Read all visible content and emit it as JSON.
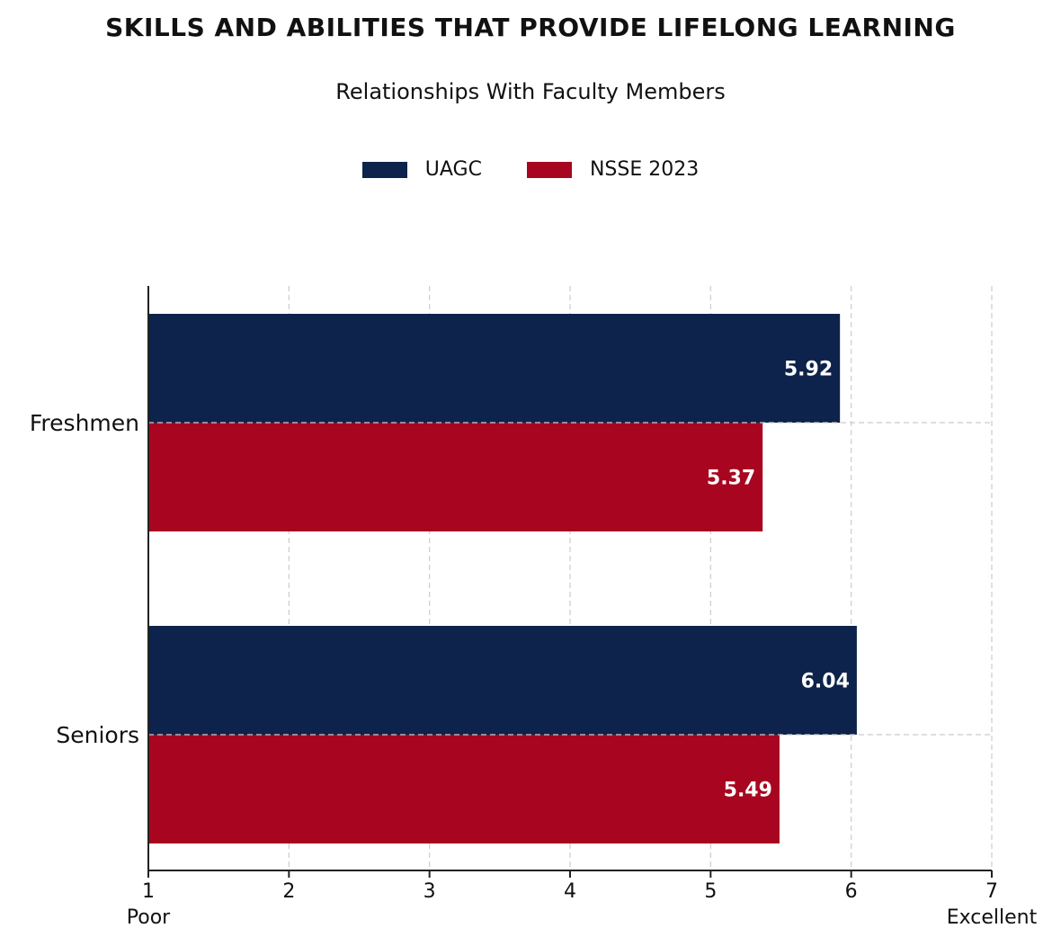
{
  "chart_data": {
    "type": "bar",
    "orientation": "horizontal",
    "title": "SKILLS AND ABILITIES THAT PROVIDE LIFELONG LEARNING",
    "subtitle": "Relationships With Faculty Members",
    "categories": [
      "Freshmen",
      "Seniors"
    ],
    "series": [
      {
        "name": "UAGC",
        "color": "#0d234b",
        "values": [
          5.92,
          6.04
        ]
      },
      {
        "name": "NSSE 2023",
        "color": "#a80620",
        "values": [
          5.37,
          5.49
        ]
      }
    ],
    "xlim": [
      1,
      7
    ],
    "xticks": [
      1,
      2,
      3,
      4,
      5,
      6,
      7
    ],
    "x_endpoint_labels": {
      "low": "Poor",
      "high": "Excellent"
    },
    "grid": true,
    "legend_position": "top-center"
  }
}
